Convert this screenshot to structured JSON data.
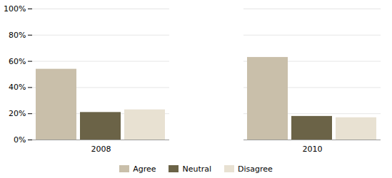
{
  "chart_data": {
    "type": "bar",
    "categories": [
      "2008",
      "2010"
    ],
    "series": [
      {
        "name": "Agree",
        "color": "#c9bfaa",
        "values": [
          54,
          63
        ]
      },
      {
        "name": "Neutral",
        "color": "#6b6347",
        "values": [
          21,
          18
        ]
      },
      {
        "name": "Disagree",
        "color": "#e8e1d2",
        "values": [
          23,
          17
        ]
      }
    ],
    "ylim": [
      0,
      100
    ],
    "yticks": [
      {
        "value": 0,
        "label": "0%"
      },
      {
        "value": 20,
        "label": "20%"
      },
      {
        "value": 40,
        "label": "40%"
      },
      {
        "value": 60,
        "label": "60%"
      },
      {
        "value": 80,
        "label": "80%"
      },
      {
        "value": 100,
        "label": "100%"
      }
    ],
    "grid": true,
    "legend": "bottom"
  }
}
